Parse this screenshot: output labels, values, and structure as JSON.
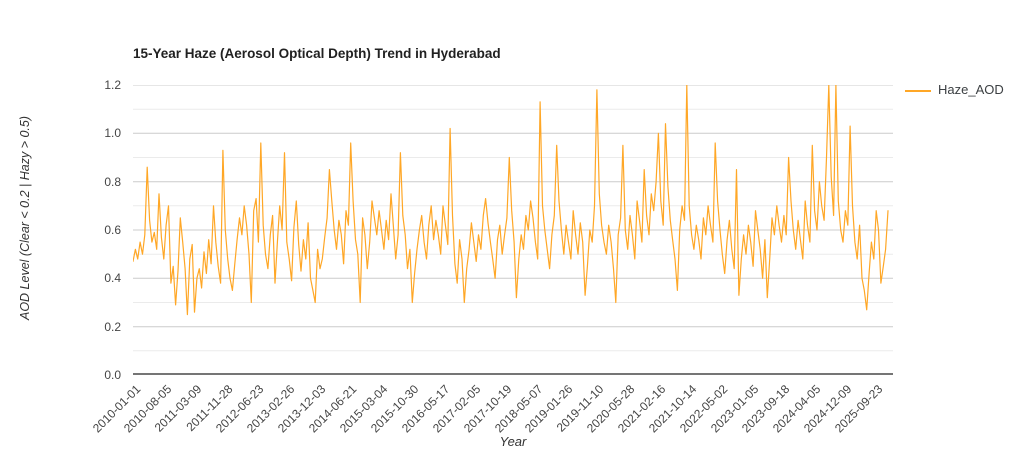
{
  "page": {
    "background": "#ffffff"
  },
  "chart_data": {
    "type": "line",
    "title": "15-Year Haze (Aerosol Optical Depth) Trend in Hyderabad",
    "xlabel": "Year",
    "ylabel": "AOD Level (Clear < 0.2 | Hazy > 0.5)",
    "legend": {
      "label": "Haze_AOD",
      "position": "right"
    },
    "colors": {
      "line": "#FFA726",
      "grid_major": "#cccccc",
      "grid_minor": "#ebebeb",
      "axis_line": "#757575",
      "tick_text": "#454545"
    },
    "grid": true,
    "ylim": [
      0,
      1.2
    ],
    "yticks": [
      0.0,
      0.2,
      0.4,
      0.6,
      0.8,
      1.0,
      1.2
    ],
    "minor_grid_step": 0.1,
    "x_tick_labels": [
      "2010-01-01",
      "2010-08-05",
      "2011-03-09",
      "2011-11-28",
      "2012-06-23",
      "2013-02-26",
      "2013-12-03",
      "2014-06-21",
      "2015-03-04",
      "2015-10-30",
      "2016-05-17",
      "2017-02-05",
      "2017-10-19",
      "2018-05-07",
      "2019-01-26",
      "2019-11-10",
      "2020-05-28",
      "2021-02-16",
      "2021-10-14",
      "2022-05-02",
      "2023-01-05",
      "2023-09-18",
      "2024-04-05",
      "2024-12-09",
      "2025-09-23"
    ],
    "series": [
      {
        "name": "Haze_AOD",
        "values": [
          0.47,
          0.52,
          0.48,
          0.55,
          0.5,
          0.58,
          0.86,
          0.64,
          0.55,
          0.59,
          0.52,
          0.75,
          0.57,
          0.48,
          0.62,
          0.7,
          0.38,
          0.45,
          0.29,
          0.43,
          0.65,
          0.55,
          0.44,
          0.25,
          0.48,
          0.54,
          0.26,
          0.4,
          0.44,
          0.36,
          0.51,
          0.42,
          0.56,
          0.46,
          0.7,
          0.55,
          0.45,
          0.38,
          0.93,
          0.6,
          0.48,
          0.4,
          0.35,
          0.46,
          0.56,
          0.65,
          0.58,
          0.7,
          0.62,
          0.5,
          0.3,
          0.68,
          0.73,
          0.55,
          0.96,
          0.62,
          0.5,
          0.44,
          0.58,
          0.66,
          0.38,
          0.55,
          0.7,
          0.6,
          0.92,
          0.55,
          0.48,
          0.39,
          0.61,
          0.72,
          0.54,
          0.43,
          0.56,
          0.48,
          0.63,
          0.4,
          0.35,
          0.3,
          0.52,
          0.44,
          0.48,
          0.57,
          0.65,
          0.85,
          0.72,
          0.6,
          0.52,
          0.64,
          0.58,
          0.46,
          0.68,
          0.62,
          0.96,
          0.72,
          0.56,
          0.5,
          0.3,
          0.65,
          0.58,
          0.44,
          0.55,
          0.72,
          0.65,
          0.58,
          0.68,
          0.6,
          0.52,
          0.64,
          0.56,
          0.75,
          0.62,
          0.48,
          0.58,
          0.92,
          0.66,
          0.58,
          0.44,
          0.52,
          0.3,
          0.42,
          0.52,
          0.6,
          0.66,
          0.55,
          0.48,
          0.62,
          0.7,
          0.56,
          0.64,
          0.58,
          0.5,
          0.7,
          0.62,
          0.54,
          1.02,
          0.66,
          0.46,
          0.38,
          0.56,
          0.48,
          0.3,
          0.44,
          0.52,
          0.63,
          0.55,
          0.47,
          0.58,
          0.52,
          0.66,
          0.73,
          0.63,
          0.55,
          0.48,
          0.4,
          0.56,
          0.62,
          0.5,
          0.58,
          0.65,
          0.9,
          0.68,
          0.55,
          0.32,
          0.48,
          0.58,
          0.52,
          0.66,
          0.6,
          0.72,
          0.65,
          0.55,
          0.48,
          1.13,
          0.7,
          0.6,
          0.52,
          0.44,
          0.58,
          0.66,
          0.95,
          0.72,
          0.6,
          0.5,
          0.62,
          0.55,
          0.48,
          0.68,
          0.58,
          0.5,
          0.63,
          0.55,
          0.33,
          0.45,
          0.6,
          0.55,
          0.7,
          1.18,
          0.75,
          0.62,
          0.55,
          0.5,
          0.62,
          0.55,
          0.44,
          0.3,
          0.58,
          0.65,
          0.95,
          0.6,
          0.52,
          0.66,
          0.58,
          0.48,
          0.72,
          0.64,
          0.55,
          0.85,
          0.66,
          0.58,
          0.75,
          0.68,
          0.8,
          1.0,
          0.72,
          0.62,
          1.04,
          0.78,
          0.64,
          0.56,
          0.48,
          0.35,
          0.6,
          0.7,
          0.64,
          1.2,
          0.7,
          0.58,
          0.52,
          0.62,
          0.56,
          0.48,
          0.65,
          0.58,
          0.7,
          0.62,
          0.55,
          0.96,
          0.72,
          0.6,
          0.5,
          0.42,
          0.56,
          0.64,
          0.52,
          0.44,
          0.85,
          0.33,
          0.48,
          0.58,
          0.5,
          0.62,
          0.55,
          0.45,
          0.68,
          0.6,
          0.52,
          0.4,
          0.56,
          0.32,
          0.48,
          0.65,
          0.58,
          0.7,
          0.62,
          0.55,
          0.66,
          0.58,
          0.9,
          0.72,
          0.6,
          0.52,
          0.64,
          0.56,
          0.48,
          0.72,
          0.62,
          0.55,
          0.95,
          0.68,
          0.6,
          0.8,
          0.7,
          0.64,
          0.9,
          1.2,
          0.82,
          0.66,
          1.2,
          0.72,
          0.6,
          0.55,
          0.68,
          0.62,
          1.03,
          0.7,
          0.55,
          0.48,
          0.62,
          0.4,
          0.35,
          0.27,
          0.42,
          0.55,
          0.48,
          0.68,
          0.6,
          0.38,
          0.45,
          0.52,
          0.68
        ]
      }
    ]
  }
}
